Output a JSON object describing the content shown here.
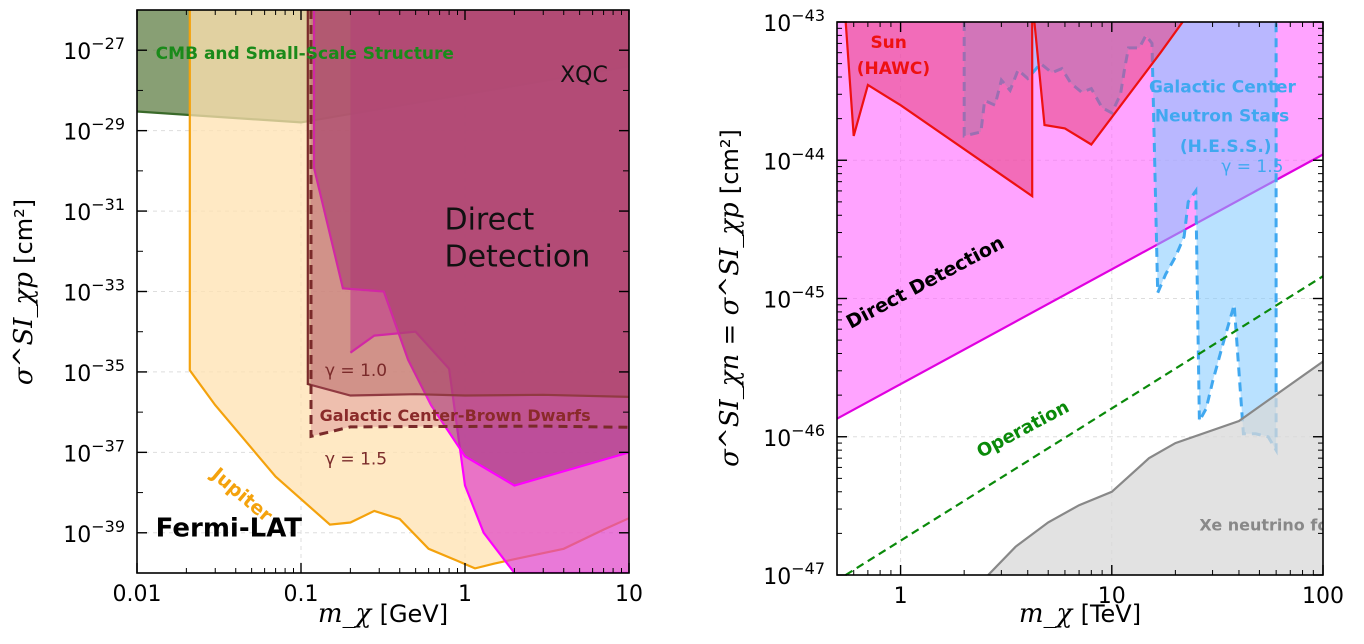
{
  "chart_data": [
    {
      "type": "area",
      "x_scale": "log",
      "y_scale": "log",
      "xlim": [
        0.01,
        10
      ],
      "ylim": [
        1e-40,
        1e-26
      ],
      "xlabel_var": "m_χ",
      "xlabel_unit": "[GeV]",
      "ylabel_var": "σ^SI_χp",
      "ylabel_unit": "[cm²]",
      "x_ticks": [
        {
          "value": 0.01,
          "label": "0.01"
        },
        {
          "value": 0.1,
          "label": "0.1"
        },
        {
          "value": 1,
          "label": "1"
        },
        {
          "value": 10,
          "label": "10"
        }
      ],
      "y_ticks": [
        {
          "exp": -27,
          "label_base": "10",
          "label_exp": "−27"
        },
        {
          "exp": -29,
          "label_base": "10",
          "label_exp": "−29"
        },
        {
          "exp": -31,
          "label_base": "10",
          "label_exp": "−31"
        },
        {
          "exp": -33,
          "label_base": "10",
          "label_exp": "−33"
        },
        {
          "exp": -35,
          "label_base": "10",
          "label_exp": "−35"
        },
        {
          "exp": -37,
          "label_base": "10",
          "label_exp": "−37"
        },
        {
          "exp": -39,
          "label_base": "10",
          "label_exp": "−39"
        }
      ],
      "grid": true,
      "regions": [
        {
          "name": "CMB and Small-Scale Structure",
          "fill": "#5a7a3e",
          "stroke": "#3a6a2a",
          "opacity": 0.72,
          "style": "solid",
          "boundary": [
            [
              0.01,
              3e-29
            ],
            [
              0.1,
              1.6e-29
            ],
            [
              1,
              8e-29
            ],
            [
              10,
              4e-28
            ]
          ],
          "side": "above"
        },
        {
          "name": "Jupiter",
          "fill": "#ffe2b0",
          "stroke": "#f4a20c",
          "opacity": 0.75,
          "style": "solid",
          "boundary": [
            [
              0.021,
              1e-26
            ],
            [
              0.021,
              1.1e-35
            ],
            [
              0.03,
              1.5e-36
            ],
            [
              0.07,
              2.5e-38
            ],
            [
              0.15,
              1.6e-39
            ],
            [
              0.2,
              1.8e-39
            ],
            [
              0.28,
              3.5e-39
            ],
            [
              0.4,
              2.2e-39
            ],
            [
              0.6,
              4e-40
            ],
            [
              0.9,
              2e-40
            ],
            [
              1.15,
              1.3e-40
            ],
            [
              1.5,
              1.7e-40
            ],
            [
              2,
              2.2e-40
            ],
            [
              4,
              4e-40
            ],
            [
              7,
              1.2e-39
            ],
            [
              10,
              2.3e-39
            ]
          ],
          "side": "above"
        },
        {
          "name": "XQC",
          "fill": "#e040c8",
          "stroke": "#ff00ff",
          "opacity": 0.7,
          "style": "solid",
          "boundary": [
            [
              0.2,
              3e-35
            ],
            [
              0.28,
              8e-35
            ],
            [
              0.5,
              1e-34
            ],
            [
              0.8,
              1.2e-35
            ],
            [
              1.0,
              1.5e-38
            ],
            [
              1.3,
              1e-39
            ],
            [
              2,
              1e-40
            ],
            [
              10,
              1e-40
            ]
          ],
          "side": "above"
        },
        {
          "name": "Direct Detection",
          "fill": "#a83c84",
          "stroke": "#ff00ff",
          "opacity": 0.68,
          "style": "solid",
          "boundary": [
            [
              0.12,
              1e-26
            ],
            [
              0.12,
              1.2e-30
            ],
            [
              0.18,
              1.2e-33
            ],
            [
              0.32,
              1e-33
            ],
            [
              0.45,
              2e-35
            ],
            [
              0.62,
              1.5e-36
            ],
            [
              1,
              8e-38
            ],
            [
              2,
              1.5e-38
            ],
            [
              10,
              1e-37
            ]
          ],
          "side": "above"
        },
        {
          "name": "Galactic Center-Brown Dwarfs γ = 1.0",
          "fill": "#8a3030",
          "stroke": "#7a2a2a",
          "opacity": 0.35,
          "style": "solid",
          "boundary": [
            [
              0.11,
              1e-26
            ],
            [
              0.11,
              5e-36
            ],
            [
              0.2,
              2.6e-36
            ],
            [
              0.5,
              2.8e-36
            ],
            [
              1,
              2.6e-36
            ],
            [
              3,
              2.7e-36
            ],
            [
              10,
              2.4e-36
            ]
          ],
          "side": "above"
        },
        {
          "name": "Galactic Center-Brown Dwarfs γ = 1.5",
          "fill": "#c8607a",
          "stroke": "#7a2a2a",
          "opacity": 0.3,
          "style": "dashed",
          "boundary": [
            [
              0.115,
              1e-26
            ],
            [
              0.115,
              2.5e-37
            ],
            [
              0.2,
              4.3e-37
            ],
            [
              0.5,
              4.4e-37
            ],
            [
              1,
              4.4e-37
            ],
            [
              3,
              4.5e-37
            ],
            [
              10,
              4.2e-37
            ]
          ],
          "side": "above"
        }
      ],
      "annotations": [
        {
          "text": "CMB and Small-Scale Structure",
          "color": "#1a8a1a",
          "bold": true,
          "x": 0.013,
          "y": 6e-28,
          "size": 17,
          "rotate": 0
        },
        {
          "text": "XQC",
          "color": "#111111",
          "bold": false,
          "x": 3.8,
          "y": 1.6e-28,
          "size": 22,
          "rotate": 0
        },
        {
          "text": "Direct",
          "color": "#111111",
          "bold": false,
          "x": 0.75,
          "y": 3.5e-32,
          "size": 30,
          "rotate": 0
        },
        {
          "text": "Detection",
          "color": "#111111",
          "bold": false,
          "x": 0.75,
          "y": 4.2e-33,
          "size": 30,
          "rotate": 0
        },
        {
          "text": "γ = 1.0",
          "color": "#7a2a2a",
          "bold": false,
          "x": 0.14,
          "y": 8e-36,
          "size": 17,
          "rotate": 0
        },
        {
          "text": "Galactic Center-Brown Dwarfs",
          "color": "#8a2a2a",
          "bold": true,
          "x": 0.13,
          "y": 6e-37,
          "size": 16,
          "rotate": 0
        },
        {
          "text": "γ = 1.5",
          "color": "#7a2a2a",
          "bold": false,
          "x": 0.14,
          "y": 5e-38,
          "size": 17,
          "rotate": 0
        },
        {
          "text": "Jupiter",
          "color": "#f4a20c",
          "bold": true,
          "x": 0.028,
          "y": 2.5e-38,
          "size": 19,
          "rotate": 40
        },
        {
          "text": "Fermi-LAT",
          "color": "#000000",
          "bold": true,
          "x": 0.013,
          "y": 8e-40,
          "size": 26,
          "rotate": 0
        }
      ]
    },
    {
      "type": "area",
      "x_scale": "log",
      "y_scale": "log",
      "xlim": [
        0.5,
        100
      ],
      "ylim": [
        1e-47,
        1e-43
      ],
      "xlabel_var": "m_χ",
      "xlabel_unit": "[TeV]",
      "ylabel_var": "σ^SI_χn = σ^SI_χp",
      "ylabel_unit": "[cm²]",
      "x_ticks": [
        {
          "value": 1,
          "label": "1"
        },
        {
          "value": 10,
          "label": "10"
        },
        {
          "value": 100,
          "label": "100"
        }
      ],
      "y_ticks": [
        {
          "exp": -43,
          "label_base": "10",
          "label_exp": "−43"
        },
        {
          "exp": -44,
          "label_base": "10",
          "label_exp": "−44"
        },
        {
          "exp": -45,
          "label_base": "10",
          "label_exp": "−45"
        },
        {
          "exp": -46,
          "label_base": "10",
          "label_exp": "−46"
        },
        {
          "exp": -47,
          "label_base": "10",
          "label_exp": "−47"
        }
      ],
      "grid": true,
      "regions": [
        {
          "name": "Direct Detection",
          "fill": "#ff66ff",
          "stroke": "#e000e0",
          "opacity": 0.6,
          "style": "solid",
          "boundary": [
            [
              0.5,
              1.35e-46
            ],
            [
              100,
              1.1e-44
            ]
          ],
          "side": "above"
        },
        {
          "name": "Galactic Center Neutron Stars (H.E.S.S.) γ = 1.5",
          "fill": "#80c8ff",
          "stroke": "#40a8f0",
          "opacity": 0.55,
          "style": "dashed",
          "boundary": [
            [
              2,
              1e-43
            ],
            [
              2,
              1.5e-44
            ],
            [
              2.4,
              1.6e-44
            ],
            [
              2.5,
              2.7e-44
            ],
            [
              2.8,
              2.5e-44
            ],
            [
              3,
              3.8e-44
            ],
            [
              3.3,
              3.2e-44
            ],
            [
              3.6,
              4.5e-44
            ],
            [
              4,
              3.9e-44
            ],
            [
              4.6,
              5e-44
            ],
            [
              5.2,
              4.3e-44
            ],
            [
              5.8,
              4.6e-44
            ],
            [
              6.4,
              3.6e-44
            ],
            [
              7.2,
              3.1e-44
            ],
            [
              8,
              3.3e-44
            ],
            [
              9,
              2.4e-44
            ],
            [
              10,
              2.2e-44
            ],
            [
              11,
              3e-44
            ],
            [
              11.5,
              4.6e-44
            ],
            [
              12,
              6.5e-44
            ],
            [
              13.5,
              6.5e-44
            ],
            [
              14.5,
              8e-44
            ],
            [
              15.5,
              7e-44
            ],
            [
              16.5,
              1.1e-45
            ],
            [
              18,
              1.5e-45
            ],
            [
              20,
              2e-45
            ],
            [
              22,
              2.8e-45
            ],
            [
              23,
              5e-45
            ],
            [
              25,
              6e-45
            ],
            [
              26,
              1.3e-46
            ],
            [
              28,
              1.6e-46
            ],
            [
              30,
              2.5e-46
            ],
            [
              34,
              5e-46
            ],
            [
              38,
              9e-46
            ],
            [
              42,
              1.05e-46
            ],
            [
              48,
              1.05e-46
            ],
            [
              55,
              1e-46
            ],
            [
              60,
              8e-47
            ],
            [
              60,
              1e-43
            ]
          ],
          "side": "above"
        },
        {
          "name": "Sun (HAWC)",
          "fill": "#e84080",
          "stroke": "#ee1111",
          "opacity": 0.55,
          "style": "solid",
          "boundary": [
            [
              0.55,
              1e-43
            ],
            [
              0.6,
              1.5e-44
            ],
            [
              0.7,
              3.5e-44
            ],
            [
              1,
              2.5e-44
            ],
            [
              4.2,
              5.5e-45
            ],
            [
              4.2,
              1e-43
            ],
            [
              4.3,
              1e-43
            ],
            [
              4.8,
              1.8e-44
            ],
            [
              6,
              1.7e-44
            ],
            [
              8,
              1.3e-44
            ],
            [
              17,
              6e-44
            ],
            [
              30,
              2e-43
            ]
          ],
          "side": "above"
        },
        {
          "name": "Xe neutrino fog",
          "fill": "#d8d8d8",
          "stroke": "#888888",
          "opacity": 0.75,
          "style": "solid",
          "boundary": [
            [
              2.6,
              1e-47
            ],
            [
              3.5,
              1.6e-47
            ],
            [
              5,
              2.4e-47
            ],
            [
              7,
              3.2e-47
            ],
            [
              10,
              4e-47
            ],
            [
              15,
              7e-47
            ],
            [
              20,
              9e-47
            ],
            [
              40,
              1.3e-46
            ],
            [
              100,
              3.5e-46
            ]
          ],
          "side": "below"
        }
      ],
      "lines": [
        {
          "name": "Operation",
          "color": "#0a8a0a",
          "style": "dashed",
          "points": [
            [
              0.55,
              1e-47
            ],
            [
              100,
              1.45e-45
            ]
          ]
        }
      ],
      "annotations": [
        {
          "text": "Sun",
          "color": "#ee1111",
          "bold": true,
          "x": 0.72,
          "y": 6.5e-44,
          "size": 17,
          "rotate": 0
        },
        {
          "text": "(HAWC)",
          "color": "#ee1111",
          "bold": true,
          "x": 0.62,
          "y": 4.2e-44,
          "size": 17,
          "rotate": 0
        },
        {
          "text": "Galactic Center",
          "color": "#40a8f0",
          "bold": true,
          "x": 15,
          "y": 3.1e-44,
          "size": 17,
          "rotate": 0
        },
        {
          "text": "Neutron Stars",
          "color": "#40a8f0",
          "bold": true,
          "x": 16,
          "y": 1.9e-44,
          "size": 17,
          "rotate": 0
        },
        {
          "text": "(H.E.S.S.)",
          "color": "#40a8f0",
          "bold": true,
          "x": 21,
          "y": 1.15e-44,
          "size": 17,
          "rotate": 0
        },
        {
          "text": "γ = 1.5",
          "color": "#40a8f0",
          "bold": false,
          "x": 33,
          "y": 8.2e-45,
          "size": 17,
          "rotate": 0
        },
        {
          "text": "Direct Detection",
          "color": "#000000",
          "bold": true,
          "x": 0.58,
          "y": 6e-46,
          "size": 19,
          "rotate": -28
        },
        {
          "text": "Operation",
          "color": "#0a8a0a",
          "bold": true,
          "x": 2.4,
          "y": 7e-47,
          "size": 18,
          "rotate": -28
        },
        {
          "text": "Xe neutrino fog",
          "color": "#888888",
          "bold": true,
          "x": 26,
          "y": 2.1e-47,
          "size": 16,
          "rotate": 0
        }
      ]
    }
  ]
}
